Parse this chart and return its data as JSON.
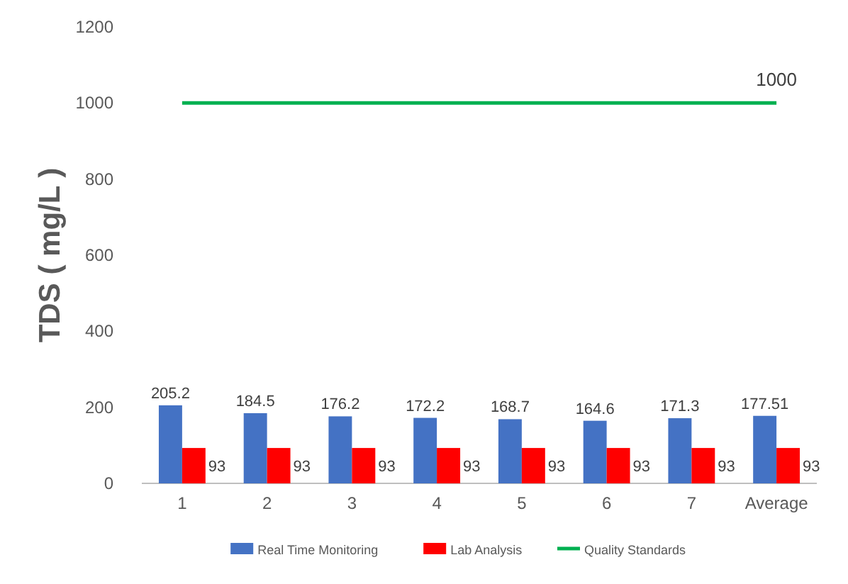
{
  "chart_data": {
    "type": "bar",
    "ylabel": "TDS ( mg/L )",
    "categories": [
      "1",
      "2",
      "3",
      "4",
      "5",
      "6",
      "7",
      "Average"
    ],
    "series": [
      {
        "name": "Real Time Monitoring",
        "color": "#4472c4",
        "values": [
          205.2,
          184.5,
          176.2,
          172.2,
          168.7,
          164.6,
          171.3,
          177.51
        ],
        "value_labels": [
          "205.2",
          "184.5",
          "176.2",
          "172.2",
          "168.7",
          "164.6",
          "171.3",
          "177.51"
        ]
      },
      {
        "name": "Lab Analysis",
        "color": "#ff0000",
        "values": [
          93,
          93,
          93,
          93,
          93,
          93,
          93,
          93
        ],
        "value_labels": [
          "93",
          "93",
          "93",
          "93",
          "93",
          "93",
          "93",
          "93"
        ]
      },
      {
        "name": "Quality Standards",
        "type": "line",
        "color": "#00b050",
        "values": [
          1000,
          1000,
          1000,
          1000,
          1000,
          1000,
          1000,
          1000
        ],
        "value_labels": [
          null,
          null,
          null,
          null,
          null,
          null,
          null,
          "1000"
        ]
      }
    ],
    "ylim": [
      0,
      1200
    ],
    "yticks": [
      0,
      200,
      400,
      600,
      800,
      1000,
      1200
    ],
    "grid": false,
    "legend": "bottom"
  }
}
